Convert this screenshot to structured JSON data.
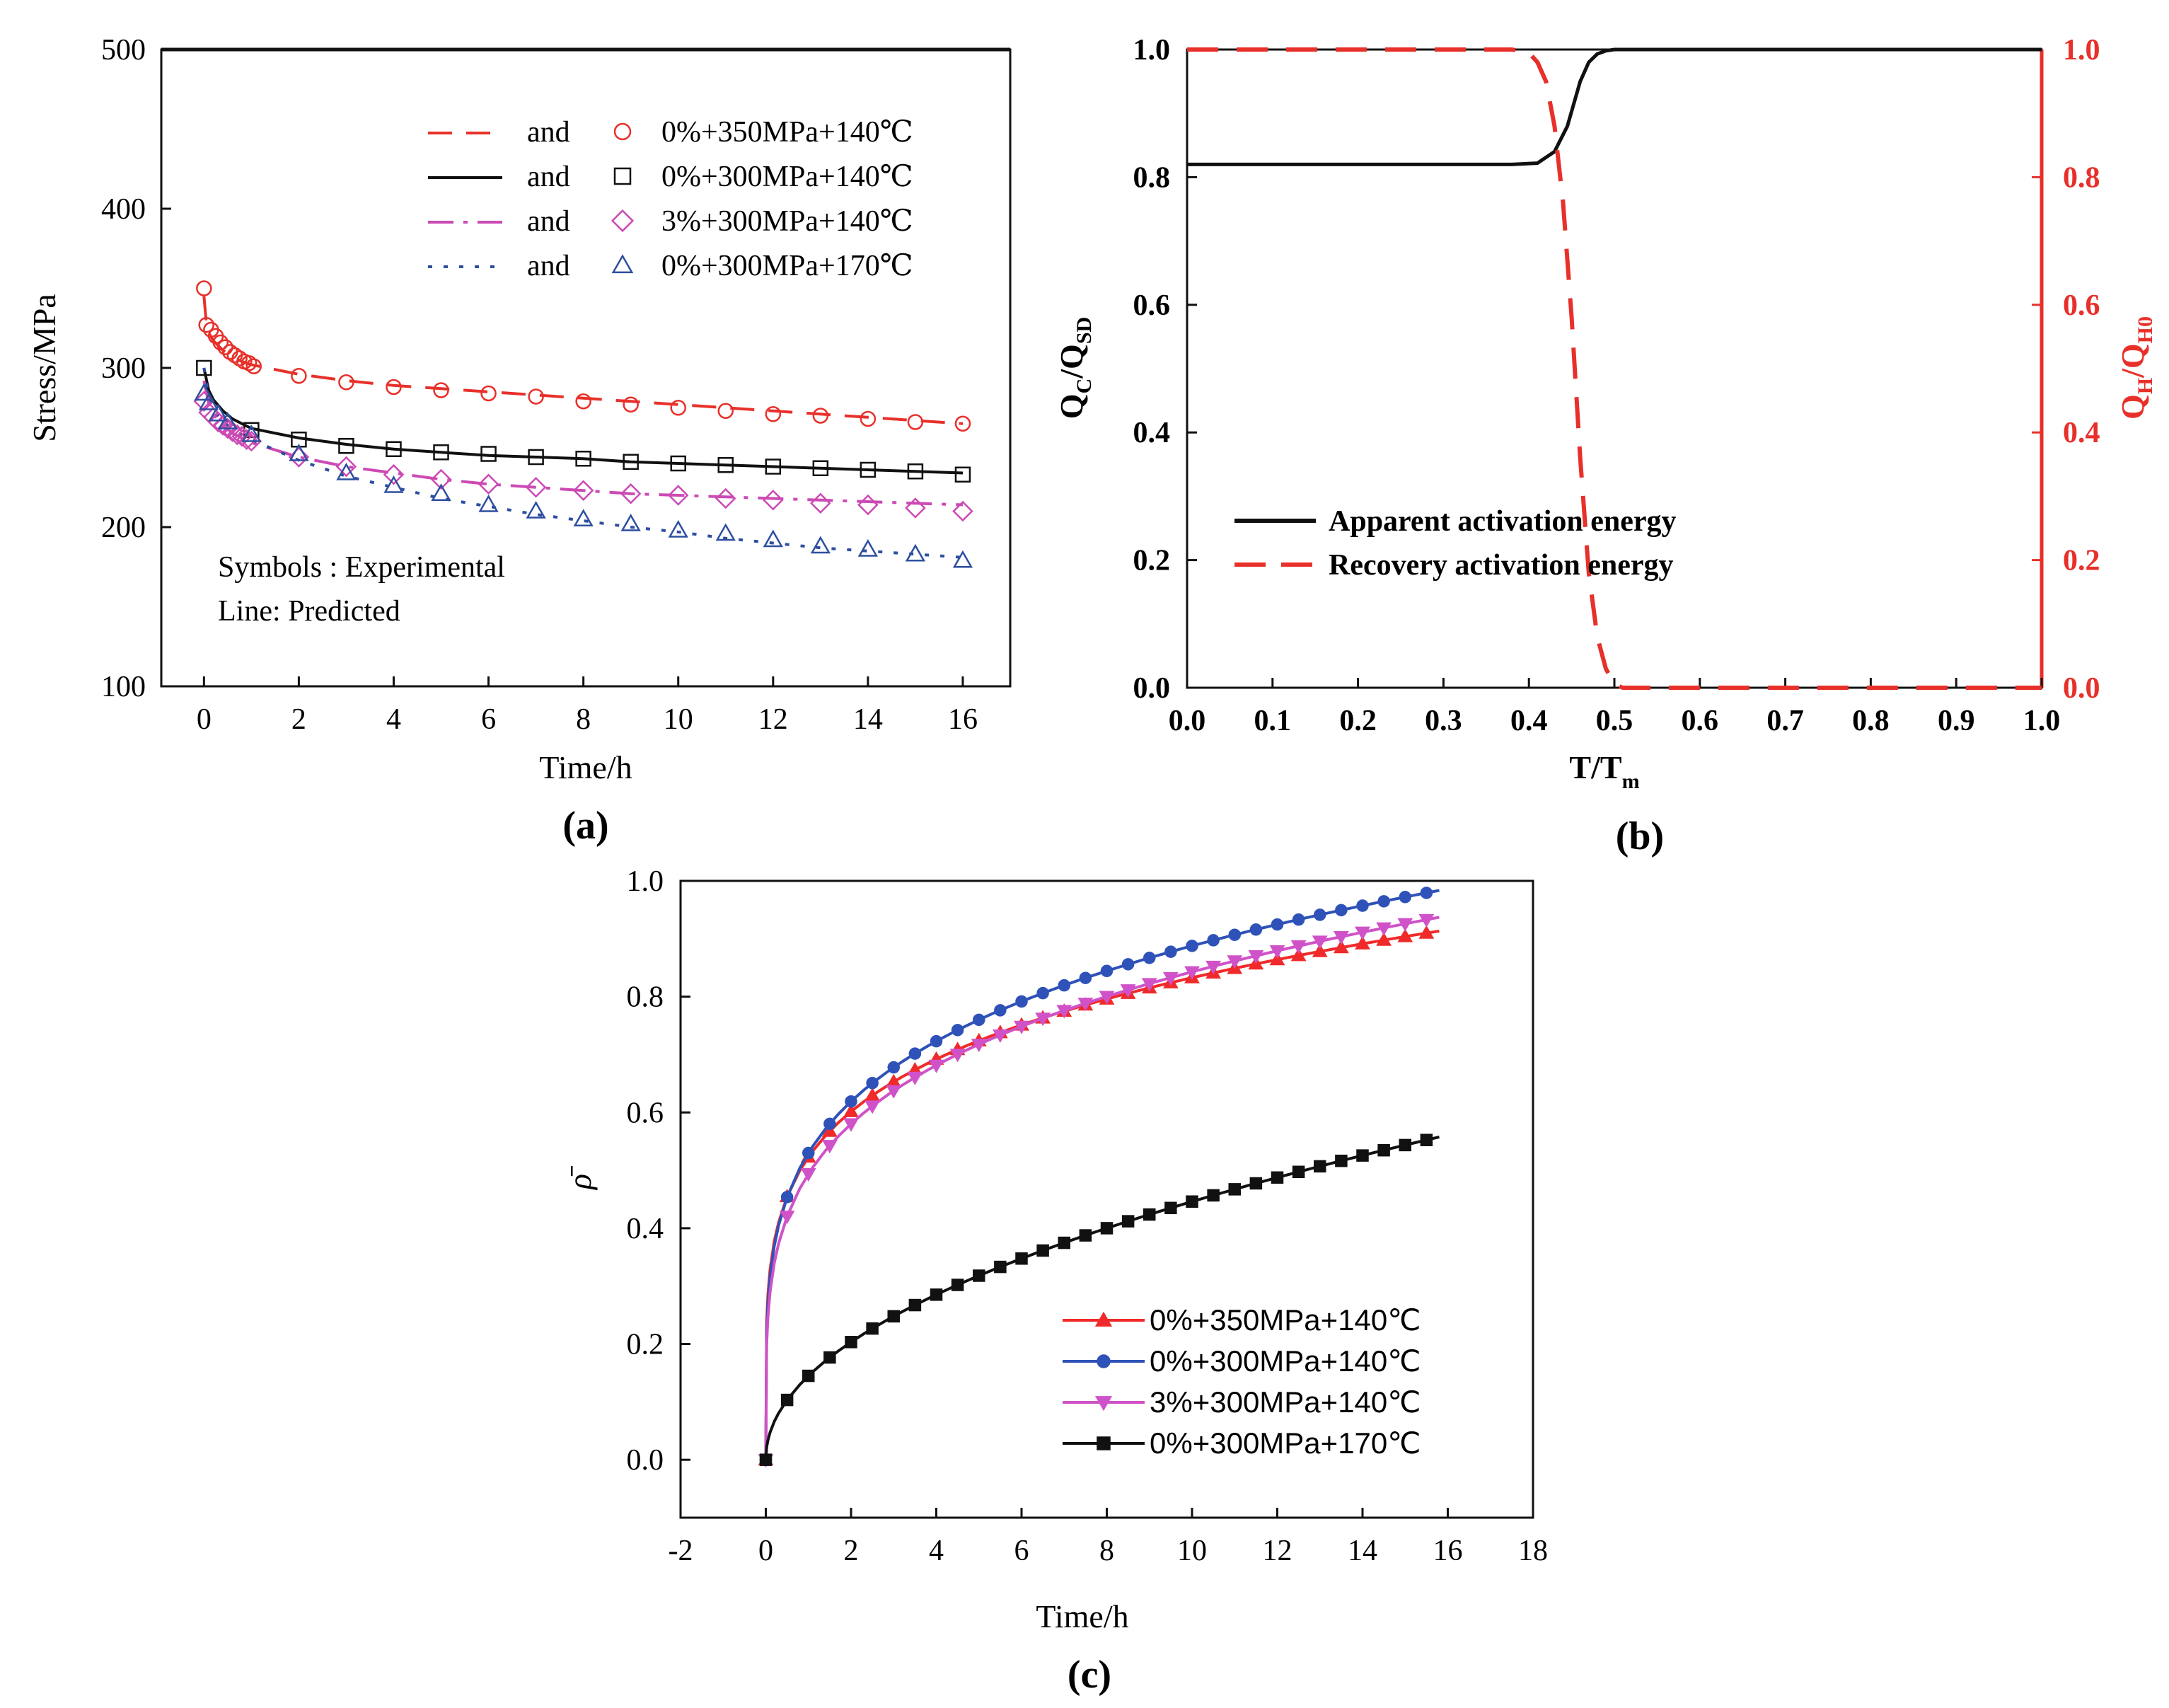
{
  "chart_data": [
    {
      "id": "a",
      "type": "scatter",
      "panel_label": "(a)",
      "xlabel": "Time/h",
      "ylabel": "Stress/MPa",
      "xlim": [
        -0.9,
        17
      ],
      "ylim": [
        100,
        500
      ],
      "xticks": [
        0,
        2,
        4,
        6,
        8,
        10,
        12,
        14,
        16
      ],
      "yticks": [
        100,
        200,
        300,
        400,
        500
      ],
      "legend_joiner": "and",
      "legend_position": "top-right",
      "annotations": [
        "Symbols : Experimental",
        "Line: Predicted"
      ],
      "colors": {
        "s350": "#e8302a",
        "s300": "#111111",
        "s3pct": "#cc4ab4",
        "s170": "#2e4fa0"
      },
      "series": [
        {
          "key": "s350",
          "name": "0%+350MPa+140℃",
          "line_style": "dashed",
          "marker": "circle",
          "predicted": {
            "x": [
              0,
              0.05,
              0.1,
              0.2,
              0.4,
              0.6,
              0.8,
              1,
              2,
              3,
              4,
              5,
              6,
              7,
              8,
              9,
              10,
              11,
              12,
              13,
              14,
              15,
              16
            ],
            "y": [
              345,
              328,
              322,
              317,
              311,
              307,
              304,
              302,
              296,
              292,
              289,
              287,
              285,
              283,
              281,
              279,
              277,
              275,
              273,
              271,
              269,
              267,
              265
            ]
          },
          "experimental": {
            "x": [
              0,
              0.05,
              0.15,
              0.25,
              0.35,
              0.45,
              0.55,
              0.65,
              0.75,
              0.85,
              0.95,
              1.05,
              2,
              3,
              4,
              5,
              6,
              7,
              8,
              9,
              10,
              11,
              12,
              13,
              14,
              15,
              16
            ],
            "y": [
              350,
              327,
              324,
              320,
              316,
              313,
              310,
              308,
              306,
              304,
              303,
              301,
              295,
              291,
              288,
              286,
              284,
              282,
              279,
              277,
              275,
              273,
              271,
              270,
              268,
              266,
              265
            ]
          }
        },
        {
          "key": "s300",
          "name": "0%+300MPa+140℃",
          "line_style": "solid",
          "marker": "square",
          "predicted": {
            "x": [
              0,
              0.1,
              0.2,
              0.4,
              0.6,
              0.8,
              1,
              2,
              3,
              4,
              5,
              6,
              7,
              8,
              9,
              10,
              11,
              12,
              13,
              14,
              15,
              16
            ],
            "y": [
              300,
              286,
              280,
              273,
              268,
              265,
              262,
              256,
              252,
              249,
              247,
              245,
              244,
              243,
              241,
              240,
              239,
              238,
              237,
              236,
              235,
              234
            ]
          },
          "experimental": {
            "x": [
              0,
              1,
              2,
              3,
              4,
              5,
              6,
              7,
              8,
              9,
              10,
              11,
              12,
              13,
              14,
              15,
              16
            ],
            "y": [
              300,
              261,
              255,
              251,
              249,
              247,
              246,
              244,
              243,
              241,
              240,
              239,
              238,
              237,
              236,
              235,
              233
            ]
          }
        },
        {
          "key": "s3pct",
          "name": "3%+300MPa+140℃",
          "line_style": "dashdot",
          "marker": "diamond",
          "predicted": {
            "x": [
              0,
              0.1,
              0.2,
              0.4,
              0.6,
              0.8,
              1,
              2,
              3,
              4,
              5,
              6,
              7,
              8,
              9,
              10,
              11,
              12,
              13,
              14,
              15,
              16
            ],
            "y": [
              292,
              278,
              271,
              264,
              259,
              256,
              253,
              244,
              238,
              234,
              230,
              227,
              225,
              223,
              221,
              220,
              219,
              218,
              217,
              216,
              215,
              214
            ]
          },
          "experimental": {
            "x": [
              0,
              0.1,
              0.2,
              0.3,
              0.4,
              0.5,
              0.6,
              0.7,
              0.8,
              0.9,
              1,
              2,
              3,
              4,
              5,
              6,
              7,
              8,
              9,
              10,
              11,
              12,
              13,
              14,
              15,
              16
            ],
            "y": [
              279,
              272,
              269,
              266,
              264,
              262,
              260,
              258,
              257,
              255,
              254,
              244,
              238,
              233,
              230,
              227,
              225,
              223,
              221,
              220,
              218,
              217,
              215,
              214,
              212,
              210
            ]
          }
        },
        {
          "key": "s170",
          "name": "0%+300MPa+170℃",
          "line_style": "dotted",
          "marker": "triangle",
          "predicted": {
            "x": [
              0,
              0.1,
              0.3,
              0.6,
              1,
              2,
              3,
              4,
              5,
              6,
              7,
              8,
              9,
              10,
              11,
              12,
              13,
              14,
              15,
              16
            ],
            "y": [
              300,
              282,
              270,
              261,
              255,
              242,
              232,
              225,
              218,
              213,
              208,
              204,
              200,
              197,
              193,
              190,
              187,
              185,
              183,
              181
            ]
          },
          "experimental": {
            "x": [
              0,
              0.1,
              0.3,
              0.5,
              1,
              2,
              3,
              4,
              5,
              6,
              7,
              8,
              9,
              10,
              11,
              12,
              13,
              14,
              15,
              16
            ],
            "y": [
              284,
              278,
              271,
              266,
              258,
              246,
              234,
              226,
              221,
              214,
              210,
              205,
              202,
              198,
              196,
              192,
              188,
              186,
              183,
              179
            ]
          }
        }
      ]
    },
    {
      "id": "b",
      "type": "line",
      "panel_label": "(b)",
      "xlabel": "T/Tm",
      "ylabel_left": "QC/QSD",
      "ylabel_right": "QH/QH0",
      "xlim": [
        0,
        1
      ],
      "ylim": [
        0,
        1
      ],
      "xticks": [
        0.0,
        0.1,
        0.2,
        0.3,
        0.4,
        0.5,
        0.6,
        0.7,
        0.8,
        0.9,
        1.0
      ],
      "yticks": [
        0.0,
        0.2,
        0.4,
        0.6,
        0.8,
        1.0
      ],
      "xtick_labels": [
        "0.0",
        "0.1",
        "0.2",
        "0.3",
        "0.4",
        "0.5",
        "0.6",
        "0.7",
        "0.8",
        "0.9",
        "1.0"
      ],
      "ytick_labels": [
        "0.0",
        "0.2",
        "0.4",
        "0.6",
        "0.8",
        "1.0"
      ],
      "legend_position": "bottom-left",
      "colors": {
        "apparent": "#111111",
        "recovery": "#e8302a",
        "right_axis": "#e8302a"
      },
      "series": [
        {
          "key": "apparent",
          "name": "Apparent activation energy",
          "line_style": "solid",
          "axis": "left",
          "x": [
            0,
            0.1,
            0.2,
            0.3,
            0.38,
            0.41,
            0.43,
            0.445,
            0.46,
            0.47,
            0.48,
            0.49,
            0.5,
            0.6,
            0.8,
            1.0
          ],
          "y": [
            0.82,
            0.82,
            0.82,
            0.82,
            0.82,
            0.822,
            0.84,
            0.88,
            0.95,
            0.98,
            0.993,
            0.998,
            1.0,
            1.0,
            1.0,
            1.0
          ]
        },
        {
          "key": "recovery",
          "name": "Recovery activation energy",
          "line_style": "dashed",
          "axis": "right",
          "x": [
            0,
            0.2,
            0.38,
            0.4,
            0.41,
            0.42,
            0.43,
            0.44,
            0.45,
            0.46,
            0.47,
            0.48,
            0.49,
            0.5,
            0.51,
            0.52,
            0.6,
            0.8,
            1.0
          ],
          "y": [
            1.0,
            1.0,
            1.0,
            0.995,
            0.98,
            0.95,
            0.88,
            0.76,
            0.58,
            0.36,
            0.18,
            0.08,
            0.03,
            0.005,
            0,
            0,
            0,
            0,
            0
          ]
        }
      ]
    },
    {
      "id": "c",
      "type": "line",
      "panel_label": "(c)",
      "xlabel": "Time/h",
      "ylabel": "ρ̄",
      "xlim": [
        -2,
        18
      ],
      "ylim": [
        -0.1,
        1.0
      ],
      "xticks": [
        -2,
        0,
        2,
        4,
        6,
        8,
        10,
        12,
        14,
        16,
        18
      ],
      "yticks": [
        0.0,
        0.2,
        0.4,
        0.6,
        0.8,
        1.0
      ],
      "ytick_labels": [
        "0.0",
        "0.2",
        "0.4",
        "0.6",
        "0.8",
        "1.0"
      ],
      "legend_position": "bottom-right",
      "colors": {
        "c350": "#f02a2a",
        "c300": "#2f52b8",
        "c3pct": "#d052c8",
        "c170": "#111111"
      },
      "series": [
        {
          "key": "c350",
          "name": "0%+350MPa+140℃",
          "marker": "triangle-up",
          "a": 0.523,
          "b": 0.202
        },
        {
          "key": "c300",
          "name": "0%+300MPa+140℃",
          "marker": "circle",
          "a": 0.53,
          "b": 0.224
        },
        {
          "key": "c3pct",
          "name": "3%+300MPa+140℃",
          "marker": "triangle-down",
          "a": 0.494,
          "b": 0.232
        },
        {
          "key": "c170",
          "name": "0%+300MPa+170℃",
          "marker": "square",
          "a": 0.145,
          "b": 0.488
        }
      ]
    }
  ]
}
